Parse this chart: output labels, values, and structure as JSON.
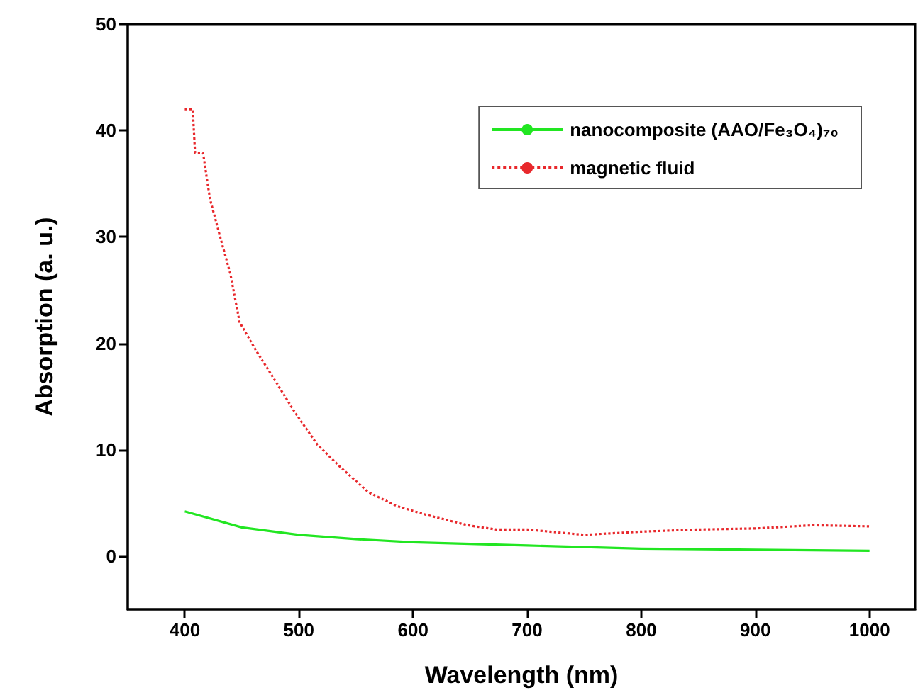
{
  "chart_data": {
    "type": "line",
    "xlabel": "Wavelength (nm)",
    "ylabel": "Absorption (a. u.)",
    "xlim": [
      350,
      1040
    ],
    "xticks": [
      400,
      500,
      600,
      700,
      800,
      900,
      1000
    ],
    "ylim": [
      -5,
      50
    ],
    "yticks": [
      0,
      10,
      20,
      30,
      40,
      50
    ],
    "grid": false,
    "legend": "top right",
    "marker": "none",
    "series": [
      {
        "name": "nanocomposite (AAO/Fe₃O₄)₇₀",
        "color": "#22e622",
        "line_style": "solid",
        "x": [
          400,
          450,
          500,
          550,
          600,
          700,
          800,
          900,
          1000
        ],
        "values": [
          4.2,
          2.7,
          2.0,
          1.6,
          1.3,
          1.0,
          0.7,
          0.6,
          0.5
        ]
      },
      {
        "name": "magnetic fluid",
        "color": "#e8282c",
        "line_style": "dotted",
        "x": [
          400,
          407,
          409,
          416,
          422,
          431,
          440,
          448,
          462,
          478,
          496,
          516,
          537,
          561,
          586,
          611,
          648,
          673,
          700,
          750,
          800,
          850,
          900,
          950,
          1000
        ],
        "values": [
          42,
          42,
          37.9,
          37.9,
          33.6,
          30,
          26.5,
          22,
          19.4,
          16.7,
          13.6,
          10.5,
          8.3,
          6,
          4.7,
          3.9,
          2.9,
          2.5,
          2.5,
          2.0,
          2.3,
          2.5,
          2.6,
          2.9,
          2.8
        ]
      }
    ]
  }
}
